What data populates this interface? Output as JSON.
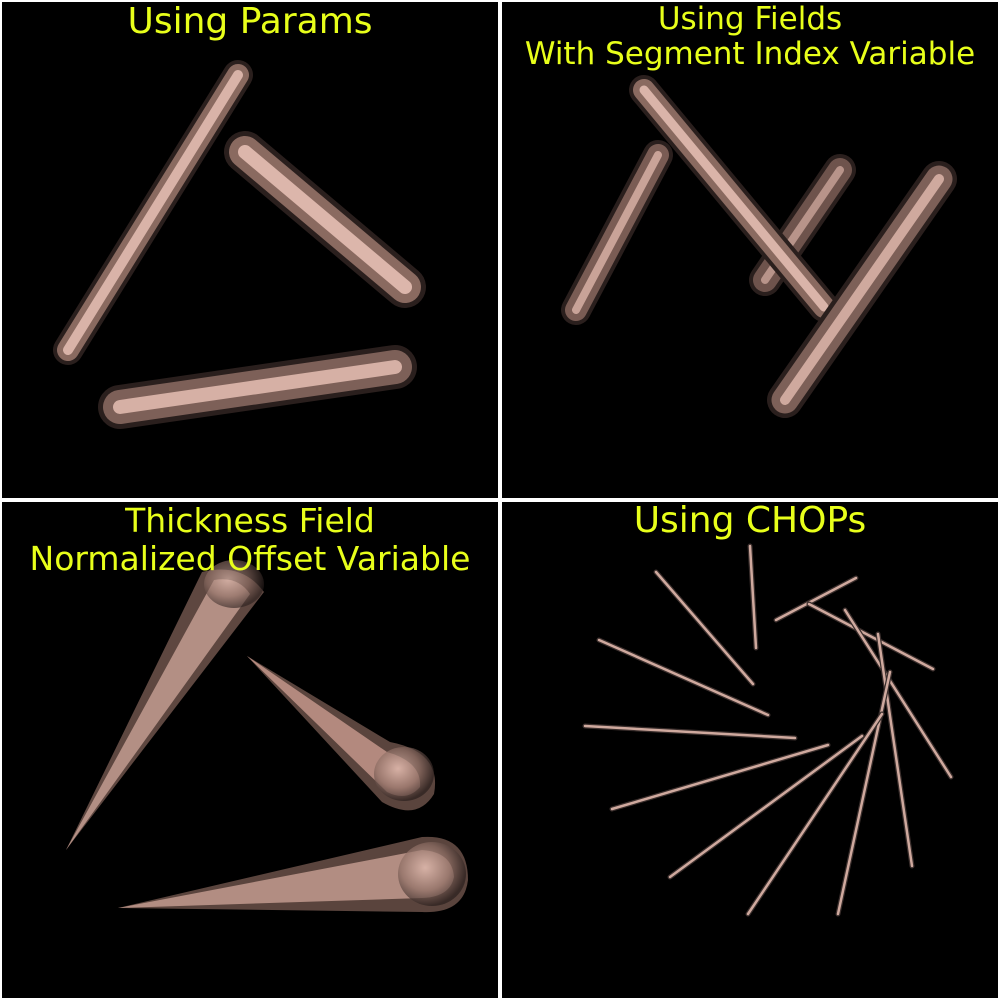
{
  "panels": [
    {
      "title_lines": [
        "Using Params"
      ]
    },
    {
      "title_lines": [
        "Using Fields",
        "With Segment Index Variable"
      ]
    },
    {
      "title_lines": [
        "Thickness Field",
        "Normalized Offset Variable"
      ]
    },
    {
      "title_lines": [
        "Using CHOPs"
      ]
    }
  ],
  "colors": {
    "background": "#000000",
    "divider": "#ffffff",
    "title": "#e8ff1a",
    "tube_highlight": "#e8c3b8",
    "tube_mid": "#a88478",
    "tube_shadow": "#3a2e2c"
  }
}
